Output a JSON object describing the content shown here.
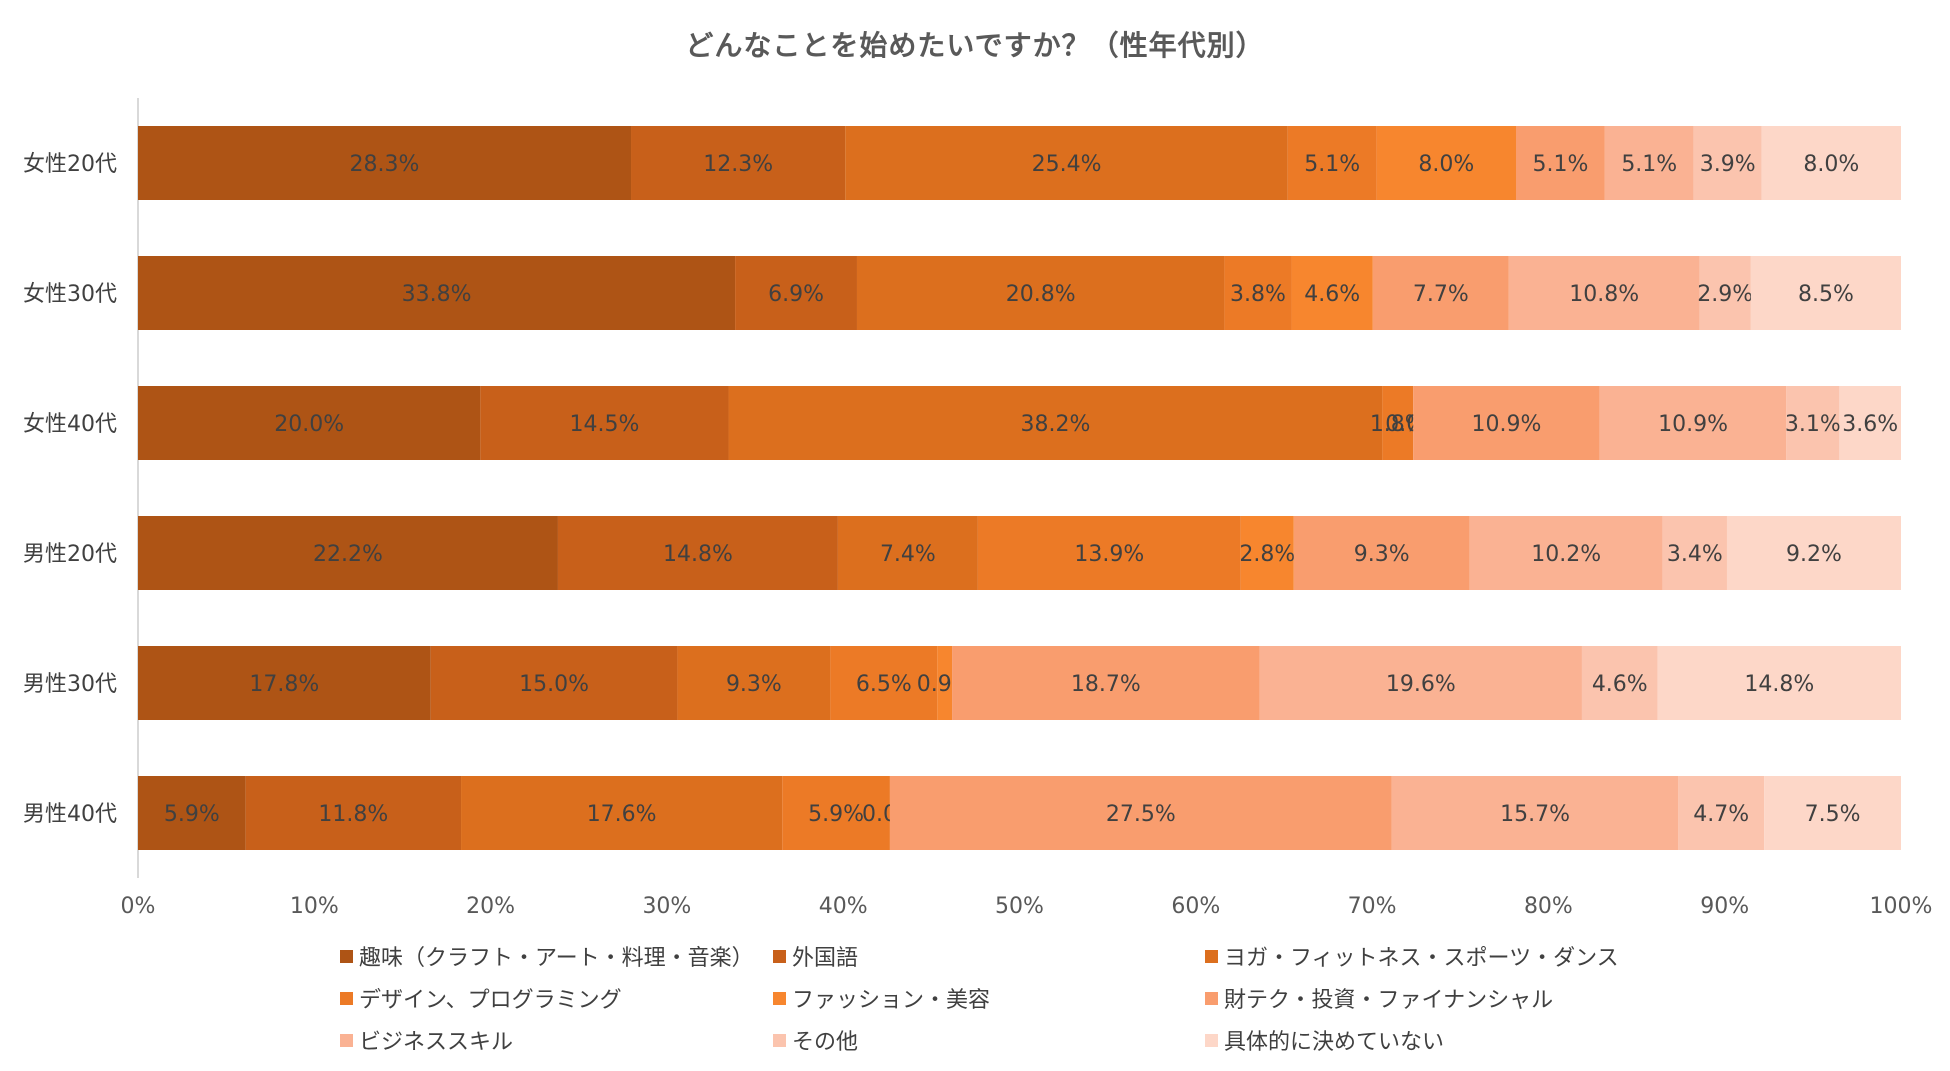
{
  "chart_data": {
    "type": "bar",
    "orientation": "horizontal",
    "stacked": "percent",
    "title": "どんなことを始めたいですか？（性年代別）",
    "xlabel": "",
    "ylabel": "",
    "xlim": [
      0,
      100
    ],
    "x_ticks": [
      "0%",
      "10%",
      "20%",
      "30%",
      "40%",
      "50%",
      "60%",
      "70%",
      "80%",
      "90%",
      "100%"
    ],
    "categories": [
      "女性20代",
      "女性30代",
      "女性40代",
      "男性20代",
      "男性30代",
      "男性40代"
    ],
    "legend_position": "bottom",
    "grid": false,
    "series": [
      {
        "name": "趣味（クラフト・アート・料理・音楽）",
        "color": "#AE5415",
        "values": [
          28.3,
          33.8,
          20.0,
          22.2,
          17.8,
          5.9
        ],
        "labels": [
          "28.3%",
          "33.8%",
          "20.0%",
          "22.2%",
          "17.8%",
          "5.9%"
        ]
      },
      {
        "name": "外国語",
        "color": "#C8601A",
        "values": [
          12.3,
          6.9,
          14.5,
          14.8,
          15.0,
          11.8
        ],
        "labels": [
          "12.3%",
          "6.9%",
          "14.5%",
          "14.8%",
          "15.0%",
          "11.8%"
        ]
      },
      {
        "name": "ヨガ・フィットネス・スポーツ・ダンス",
        "color": "#DC6F1E",
        "values": [
          25.4,
          20.8,
          38.2,
          7.4,
          9.3,
          17.6
        ],
        "labels": [
          "25.4%",
          "20.8%",
          "38.2%",
          "7.4%",
          "9.3%",
          "17.6%"
        ]
      },
      {
        "name": "デザイン、プログラミング",
        "color": "#EC7A26",
        "values": [
          5.1,
          3.8,
          1.8,
          13.9,
          6.5,
          5.9
        ],
        "labels": [
          "5.1%",
          "3.8%",
          "1.8%",
          "13.9%",
          "6.5%",
          "5.9%"
        ]
      },
      {
        "name": "ファッション・美容",
        "color": "#F7862E",
        "values": [
          8.0,
          4.6,
          0.0,
          2.8,
          0.9,
          0.0
        ],
        "labels": [
          "8.0%",
          "4.6%",
          "0.0%",
          "2.8%",
          "0.9%",
          "0.0%"
        ]
      },
      {
        "name": "財テク・投資・ファイナンシャル",
        "color": "#F99D6E",
        "values": [
          5.1,
          7.7,
          10.9,
          9.3,
          18.7,
          27.5
        ],
        "labels": [
          "5.1%",
          "7.7%",
          "10.9%",
          "9.3%",
          "18.7%",
          "27.5%"
        ]
      },
      {
        "name": "ビジネススキル",
        "color": "#FAB293",
        "values": [
          5.1,
          10.8,
          10.9,
          10.2,
          19.6,
          15.7
        ],
        "labels": [
          "5.1%",
          "10.8%",
          "10.9%",
          "10.2%",
          "19.6%",
          "15.7%"
        ]
      },
      {
        "name": "その他",
        "color": "#FBC4AE",
        "values": [
          3.9,
          2.9,
          3.1,
          3.4,
          4.6,
          4.7
        ],
        "labels": [
          "3.9%",
          "2.9%",
          "3.1%",
          "3.4%",
          "4.6%",
          "4.7%"
        ]
      },
      {
        "name": "具体的に決めていない",
        "color": "#FDD7C8",
        "values": [
          8.0,
          8.5,
          3.6,
          9.2,
          14.8,
          7.5
        ],
        "labels": [
          "8.0%",
          "8.5%",
          "3.6%",
          "9.2%",
          "14.8%",
          "7.5%"
        ]
      }
    ]
  }
}
